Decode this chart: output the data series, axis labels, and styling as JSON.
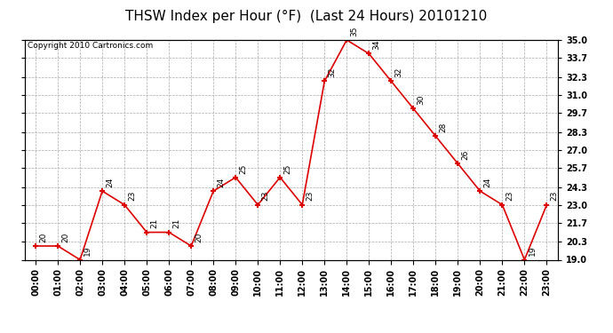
{
  "title": "THSW Index per Hour (°F)  (Last 24 Hours) 20101210",
  "copyright": "Copyright 2010 Cartronics.com",
  "hours": [
    "00:00",
    "01:00",
    "02:00",
    "03:00",
    "04:00",
    "05:00",
    "06:00",
    "07:00",
    "08:00",
    "09:00",
    "10:00",
    "11:00",
    "12:00",
    "13:00",
    "14:00",
    "15:00",
    "16:00",
    "17:00",
    "18:00",
    "19:00",
    "20:00",
    "21:00",
    "22:00",
    "23:00"
  ],
  "values": [
    20,
    20,
    19,
    24,
    23,
    21,
    21,
    20,
    24,
    25,
    23,
    25,
    23,
    32,
    35,
    34,
    32,
    30,
    28,
    26,
    24,
    23,
    19,
    23
  ],
  "ylim_min": 19.0,
  "ylim_max": 35.0,
  "yticks": [
    19.0,
    20.3,
    21.7,
    23.0,
    24.3,
    25.7,
    27.0,
    28.3,
    29.7,
    31.0,
    32.3,
    33.7,
    35.0
  ],
  "line_color": "#dd0000",
  "marker_color": "#dd0000",
  "bg_color": "#ffffff",
  "grid_color": "#aaaaaa",
  "title_fontsize": 11,
  "copyright_fontsize": 6.5,
  "label_fontsize": 6.5,
  "tick_fontsize": 7
}
